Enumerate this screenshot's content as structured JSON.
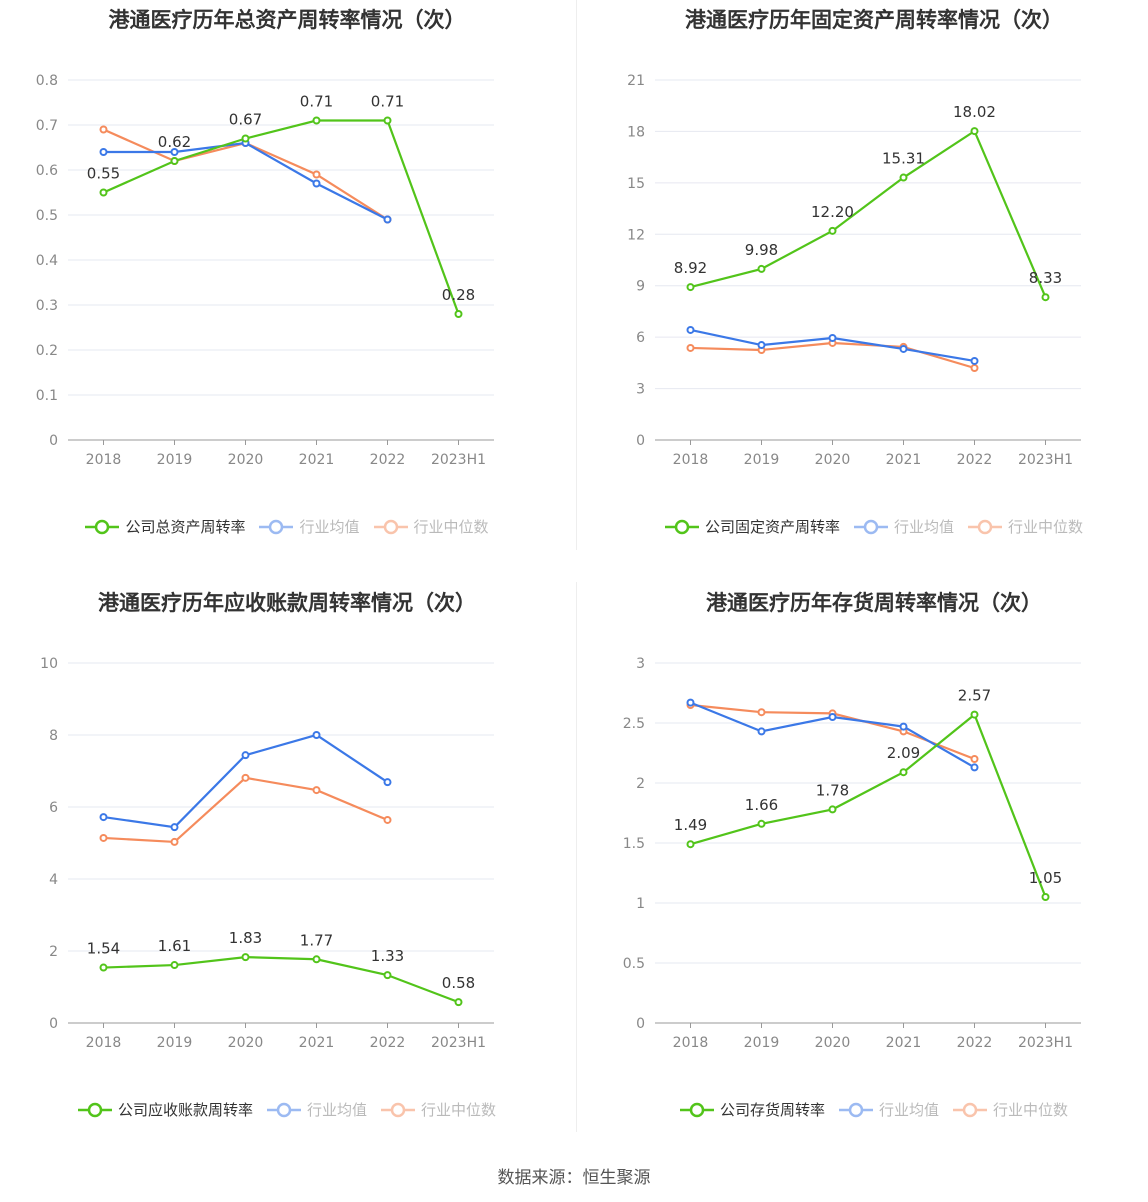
{
  "chart_data": [
    {
      "type": "line",
      "title": "港通医疗历年总资产周转率情况（次）",
      "categories": [
        "2018",
        "2019",
        "2020",
        "2021",
        "2022",
        "2023H1"
      ],
      "ylim": [
        0,
        0.8
      ],
      "yticks": [
        "0",
        "0.1",
        "0.2",
        "0.3",
        "0.4",
        "0.5",
        "0.6",
        "0.7",
        "0.8"
      ],
      "series": [
        {
          "name": "公司总资产周转率",
          "color": "#52c41a",
          "values": [
            0.55,
            0.62,
            0.67,
            0.71,
            0.71,
            0.28
          ],
          "labels": [
            "0.55",
            "0.62",
            "0.67",
            "0.71",
            "0.71",
            "0.28"
          ]
        },
        {
          "name": "行业均值",
          "color": "#3b78e7",
          "values": [
            0.64,
            0.64,
            0.66,
            0.57,
            0.49,
            null
          ]
        },
        {
          "name": "行业中位数",
          "color": "#f58b5c",
          "values": [
            0.69,
            0.62,
            0.66,
            0.59,
            0.49,
            null
          ]
        }
      ]
    },
    {
      "type": "line",
      "title": "港通医疗历年固定资产周转率情况（次）",
      "categories": [
        "2018",
        "2019",
        "2020",
        "2021",
        "2022",
        "2023H1"
      ],
      "ylim": [
        0,
        21
      ],
      "yticks": [
        "0",
        "3",
        "6",
        "9",
        "12",
        "15",
        "18",
        "21"
      ],
      "series": [
        {
          "name": "公司固定资产周转率",
          "color": "#52c41a",
          "values": [
            8.92,
            9.98,
            12.2,
            15.31,
            18.02,
            8.33
          ],
          "labels": [
            "8.92",
            "9.98",
            "12.20",
            "15.31",
            "18.02",
            "8.33"
          ]
        },
        {
          "name": "行业均值",
          "color": "#3b78e7",
          "values": [
            6.42,
            5.54,
            5.95,
            5.31,
            4.61,
            null
          ]
        },
        {
          "name": "行业中位数",
          "color": "#f58b5c",
          "values": [
            5.37,
            5.25,
            5.66,
            5.43,
            4.2,
            null
          ]
        }
      ]
    },
    {
      "type": "line",
      "title": "港通医疗历年应收账款周转率情况（次）",
      "categories": [
        "2018",
        "2019",
        "2020",
        "2021",
        "2022",
        "2023H1"
      ],
      "ylim": [
        0,
        10
      ],
      "yticks": [
        "0",
        "2",
        "4",
        "6",
        "8",
        "10"
      ],
      "series": [
        {
          "name": "公司应收账款周转率",
          "color": "#52c41a",
          "values": [
            1.54,
            1.61,
            1.83,
            1.77,
            1.33,
            0.58
          ],
          "labels": [
            "1.54",
            "1.61",
            "1.83",
            "1.77",
            "1.33",
            "0.58"
          ]
        },
        {
          "name": "行业均值",
          "color": "#3b78e7",
          "values": [
            5.72,
            5.44,
            7.44,
            8.0,
            6.69,
            null
          ]
        },
        {
          "name": "行业中位数",
          "color": "#f58b5c",
          "values": [
            5.14,
            5.03,
            6.81,
            6.47,
            5.64,
            null
          ]
        }
      ]
    },
    {
      "type": "line",
      "title": "港通医疗历年存货周转率情况（次）",
      "categories": [
        "2018",
        "2019",
        "2020",
        "2021",
        "2022",
        "2023H1"
      ],
      "ylim": [
        0,
        3
      ],
      "yticks": [
        "0",
        "0.5",
        "1",
        "1.5",
        "2",
        "2.5",
        "3"
      ],
      "series": [
        {
          "name": "公司存货周转率",
          "color": "#52c41a",
          "values": [
            1.49,
            1.66,
            1.78,
            2.09,
            2.57,
            1.05
          ],
          "labels": [
            "1.49",
            "1.66",
            "1.78",
            "2.09",
            "2.57",
            "1.05"
          ]
        },
        {
          "name": "行业均值",
          "color": "#3b78e7",
          "values": [
            2.67,
            2.43,
            2.55,
            2.47,
            2.13,
            null
          ]
        },
        {
          "name": "行业中位数",
          "color": "#f58b5c",
          "values": [
            2.65,
            2.59,
            2.58,
            2.43,
            2.2,
            null
          ]
        }
      ]
    }
  ],
  "source": "数据来源：恒生聚源"
}
